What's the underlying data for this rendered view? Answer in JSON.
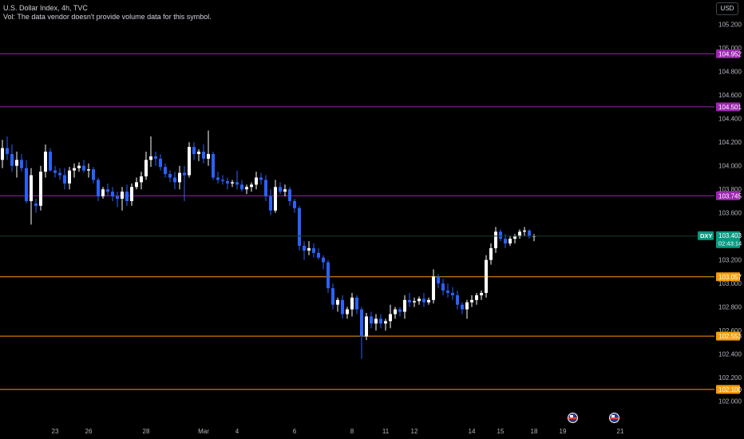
{
  "header": {
    "symbol_line": "U.S. Dollar Index, 4h, TVC",
    "volume_note": "Vol: The data vendor doesn't provide volume data for this symbol."
  },
  "currency_button": "USD",
  "events": [
    {
      "name": "us-event-icon",
      "x_date_index": 24.8
    },
    {
      "name": "us-event-icon",
      "x_date_index": 26.6
    }
  ],
  "chart_data": {
    "type": "candlestick",
    "symbol": "DXY",
    "interval": "4h",
    "ylim": [
      101.95,
      105.3
    ],
    "y_ticks": [
      "105.200",
      "105.000",
      "104.800",
      "104.600",
      "104.400",
      "104.200",
      "104.000",
      "103.800",
      "103.600",
      "103.200",
      "103.000",
      "102.800",
      "102.600",
      "102.400",
      "102.200",
      "102.000"
    ],
    "x_ticks": [
      {
        "label": "23",
        "i": 11
      },
      {
        "label": "26",
        "i": 18
      },
      {
        "label": "28",
        "i": 30
      },
      {
        "label": "Mar",
        "i": 42
      },
      {
        "label": "4",
        "i": 49
      },
      {
        "label": "6",
        "i": 61
      },
      {
        "label": "8",
        "i": 73
      },
      {
        "label": "11",
        "i": 80
      },
      {
        "label": "12",
        "i": 86
      },
      {
        "label": "14",
        "i": 98
      },
      {
        "label": "15",
        "i": 104
      },
      {
        "label": "18",
        "i": 111
      },
      {
        "label": "19",
        "i": 117
      },
      {
        "label": "21",
        "i": 129
      }
    ],
    "levels": [
      {
        "value": 104.952,
        "label": "104.952",
        "color": "#9c27b0"
      },
      {
        "value": 104.501,
        "label": "104.501",
        "color": "#9c27b0"
      },
      {
        "value": 103.745,
        "label": "103.745",
        "color": "#9c27b0"
      },
      {
        "value": 103.057,
        "label": "103.057",
        "color": "#f59d0c"
      },
      {
        "value": 102.553,
        "label": "102.553",
        "color": "#f59d0c"
      },
      {
        "value": 102.1,
        "label": "102.100",
        "color": "#f59d0c"
      }
    ],
    "last_price": {
      "symbol_label": "DXY",
      "value": "103.403",
      "countdown": "02:43:14",
      "color": "#089981"
    },
    "colors": {
      "up": "#ffffff",
      "down": "#2962ff"
    },
    "candles": [
      [
        104.05,
        104.22,
        103.98,
        104.15
      ],
      [
        104.15,
        104.25,
        104.05,
        104.1
      ],
      [
        104.1,
        104.18,
        103.95,
        104.0
      ],
      [
        104.0,
        104.12,
        103.9,
        104.05
      ],
      [
        104.05,
        104.1,
        103.95,
        103.98
      ],
      [
        103.98,
        104.05,
        103.68,
        103.7
      ],
      [
        103.7,
        103.98,
        103.5,
        103.92
      ],
      [
        103.68,
        103.72,
        103.6,
        103.66
      ],
      [
        103.66,
        104.0,
        103.62,
        103.95
      ],
      [
        103.95,
        104.18,
        103.9,
        104.12
      ],
      [
        104.12,
        104.15,
        103.95,
        103.96
      ],
      [
        103.96,
        104.0,
        103.9,
        103.94
      ],
      [
        103.94,
        103.98,
        103.88,
        103.92
      ],
      [
        103.92,
        103.98,
        103.8,
        103.85
      ],
      [
        103.85,
        103.99,
        103.8,
        103.96
      ],
      [
        103.96,
        104.02,
        103.9,
        103.98
      ],
      [
        103.98,
        104.03,
        103.95,
        104.0
      ],
      [
        104.0,
        104.05,
        103.94,
        103.96
      ],
      [
        103.96,
        104.02,
        103.9,
        103.97
      ],
      [
        103.97,
        103.99,
        103.85,
        103.88
      ],
      [
        103.88,
        103.9,
        103.7,
        103.74
      ],
      [
        103.74,
        103.82,
        103.72,
        103.8
      ],
      [
        103.8,
        103.85,
        103.75,
        103.78
      ],
      [
        103.78,
        103.82,
        103.7,
        103.74
      ],
      [
        103.74,
        103.78,
        103.65,
        103.72
      ],
      [
        103.72,
        103.82,
        103.62,
        103.78
      ],
      [
        103.78,
        103.84,
        103.66,
        103.7
      ],
      [
        103.7,
        103.85,
        103.66,
        103.82
      ],
      [
        103.82,
        103.9,
        103.8,
        103.86
      ],
      [
        103.86,
        103.95,
        103.8,
        103.91
      ],
      [
        103.91,
        104.12,
        103.88,
        104.05
      ],
      [
        104.05,
        104.25,
        103.99,
        104.08
      ],
      [
        104.08,
        104.12,
        104.0,
        104.06
      ],
      [
        104.06,
        104.1,
        103.96,
        103.99
      ],
      [
        103.99,
        104.02,
        103.9,
        103.93
      ],
      [
        103.93,
        103.96,
        103.86,
        103.9
      ],
      [
        103.9,
        103.95,
        103.8,
        103.86
      ],
      [
        103.86,
        104.0,
        103.8,
        103.94
      ],
      [
        103.94,
        104.0,
        103.7,
        103.92
      ],
      [
        103.92,
        104.2,
        103.9,
        104.16
      ],
      [
        104.16,
        104.2,
        104.05,
        104.1
      ],
      [
        104.1,
        104.14,
        104.04,
        104.12
      ],
      [
        104.12,
        104.18,
        104.02,
        104.06
      ],
      [
        104.06,
        104.3,
        104.0,
        104.1
      ],
      [
        104.1,
        104.12,
        103.88,
        103.9
      ],
      [
        103.9,
        103.95,
        103.85,
        103.88
      ],
      [
        103.88,
        103.92,
        103.84,
        103.87
      ],
      [
        103.87,
        103.9,
        103.8,
        103.85
      ],
      [
        103.85,
        103.88,
        103.82,
        103.86
      ],
      [
        103.86,
        103.96,
        103.8,
        103.84
      ],
      [
        103.84,
        103.88,
        103.78,
        103.8
      ],
      [
        103.8,
        103.84,
        103.76,
        103.82
      ],
      [
        103.82,
        103.86,
        103.78,
        103.84
      ],
      [
        103.84,
        103.95,
        103.8,
        103.9
      ],
      [
        103.9,
        103.94,
        103.84,
        103.88
      ],
      [
        103.88,
        103.92,
        103.7,
        103.74
      ],
      [
        103.74,
        103.8,
        103.58,
        103.62
      ],
      [
        103.62,
        103.88,
        103.6,
        103.82
      ],
      [
        103.82,
        103.86,
        103.76,
        103.78
      ],
      [
        103.78,
        103.84,
        103.74,
        103.8
      ],
      [
        103.8,
        103.82,
        103.66,
        103.7
      ],
      [
        103.7,
        103.72,
        103.6,
        103.64
      ],
      [
        103.64,
        103.66,
        103.28,
        103.32
      ],
      [
        103.32,
        103.36,
        103.2,
        103.28
      ],
      [
        103.28,
        103.36,
        103.24,
        103.3
      ],
      [
        103.3,
        103.34,
        103.22,
        103.26
      ],
      [
        103.26,
        103.3,
        103.2,
        103.22
      ],
      [
        103.22,
        103.24,
        103.12,
        103.18
      ],
      [
        103.18,
        103.2,
        102.92,
        102.96
      ],
      [
        102.96,
        103.0,
        102.78,
        102.82
      ],
      [
        102.82,
        102.88,
        102.76,
        102.86
      ],
      [
        102.86,
        102.9,
        102.7,
        102.74
      ],
      [
        102.74,
        102.8,
        102.7,
        102.78
      ],
      [
        102.78,
        102.92,
        102.72,
        102.88
      ],
      [
        102.88,
        102.9,
        102.74,
        102.78
      ],
      [
        102.78,
        102.8,
        102.36,
        102.55
      ],
      [
        102.55,
        102.75,
        102.52,
        102.72
      ],
      [
        102.72,
        102.76,
        102.62,
        102.66
      ],
      [
        102.66,
        102.74,
        102.6,
        102.7
      ],
      [
        102.7,
        102.74,
        102.62,
        102.66
      ],
      [
        102.66,
        102.7,
        102.6,
        102.68
      ],
      [
        102.68,
        102.82,
        102.62,
        102.74
      ],
      [
        102.74,
        102.8,
        102.7,
        102.78
      ],
      [
        102.78,
        102.8,
        102.72,
        102.76
      ],
      [
        102.76,
        102.9,
        102.7,
        102.86
      ],
      [
        102.86,
        102.92,
        102.8,
        102.84
      ],
      [
        102.84,
        102.88,
        102.8,
        102.85
      ],
      [
        102.85,
        102.89,
        102.82,
        102.87
      ],
      [
        102.87,
        102.92,
        102.8,
        102.84
      ],
      [
        102.84,
        102.88,
        102.82,
        102.86
      ],
      [
        102.86,
        103.12,
        102.83,
        103.06
      ],
      [
        103.06,
        103.08,
        102.96,
        103.0
      ],
      [
        103.0,
        103.04,
        102.9,
        102.94
      ],
      [
        102.94,
        103.0,
        102.88,
        102.92
      ],
      [
        102.92,
        102.97,
        102.86,
        102.9
      ],
      [
        102.9,
        102.94,
        102.78,
        102.82
      ],
      [
        102.82,
        102.84,
        102.74,
        102.78
      ],
      [
        102.78,
        102.86,
        102.7,
        102.84
      ],
      [
        102.84,
        102.9,
        102.8,
        102.86
      ],
      [
        102.86,
        102.92,
        102.82,
        102.9
      ],
      [
        102.9,
        102.94,
        102.86,
        102.92
      ],
      [
        102.92,
        103.24,
        102.88,
        103.2
      ],
      [
        103.2,
        103.34,
        103.16,
        103.3
      ],
      [
        103.3,
        103.48,
        103.26,
        103.44
      ],
      [
        103.44,
        103.46,
        103.36,
        103.38
      ],
      [
        103.38,
        103.42,
        103.3,
        103.34
      ],
      [
        103.34,
        103.4,
        103.32,
        103.38
      ],
      [
        103.38,
        103.42,
        103.34,
        103.4
      ],
      [
        103.4,
        103.46,
        103.38,
        103.44
      ],
      [
        103.44,
        103.48,
        103.4,
        103.45
      ],
      [
        103.45,
        103.46,
        103.38,
        103.4
      ],
      [
        103.4,
        103.42,
        103.36,
        103.403
      ]
    ]
  }
}
